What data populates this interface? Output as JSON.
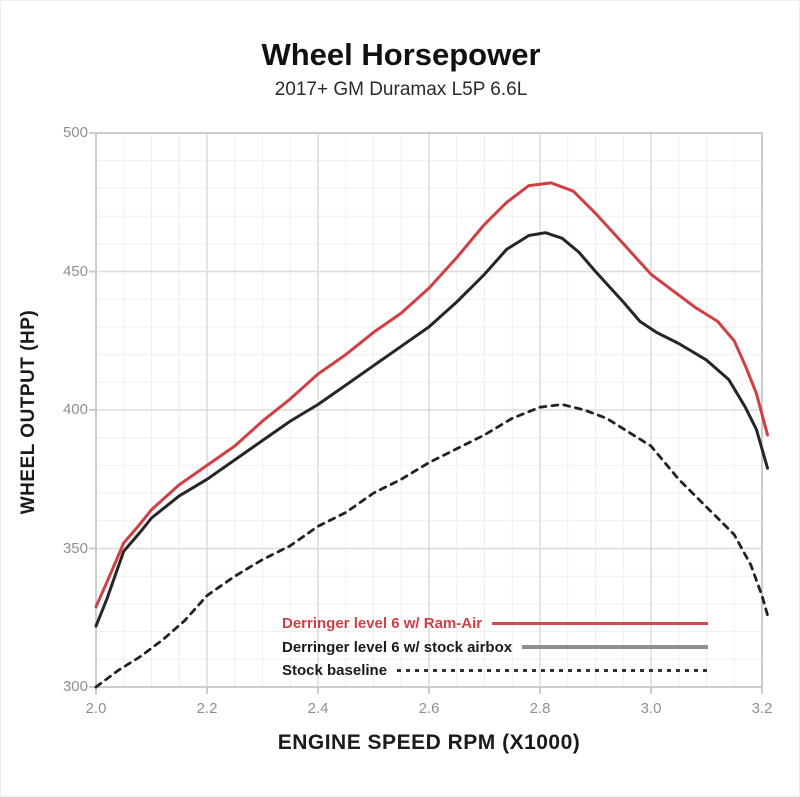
{
  "chart_data": {
    "type": "line",
    "title": "Wheel Horsepower",
    "subtitle": "2017+ GM Duramax L5P 6.6L",
    "xlabel": "ENGINE SPEED RPM (X1000)",
    "ylabel": "WHEEL OUTPUT (HP)",
    "xlim": [
      2.0,
      3.2
    ],
    "ylim": [
      300,
      500
    ],
    "x_ticks": [
      "2.0",
      "2.2",
      "2.4",
      "2.6",
      "2.8",
      "3.0",
      "3.2"
    ],
    "y_ticks": [
      "300",
      "350",
      "400",
      "450",
      "500"
    ],
    "x_major_step": 0.2,
    "x_minor_step": 0.05,
    "y_major_step": 50,
    "y_minor_step": 10,
    "grid": true,
    "legend_position": "inside-bottom-right",
    "series": [
      {
        "name": "Derringer level 6 w/ Ram-Air",
        "style": "solid",
        "color": "#cf3f44",
        "points": [
          [
            2.0,
            329
          ],
          [
            2.02,
            338
          ],
          [
            2.05,
            352
          ],
          [
            2.08,
            359
          ],
          [
            2.1,
            364
          ],
          [
            2.15,
            373
          ],
          [
            2.2,
            380
          ],
          [
            2.25,
            387
          ],
          [
            2.3,
            396
          ],
          [
            2.35,
            404
          ],
          [
            2.4,
            413
          ],
          [
            2.45,
            420
          ],
          [
            2.5,
            428
          ],
          [
            2.55,
            435
          ],
          [
            2.6,
            444
          ],
          [
            2.65,
            455
          ],
          [
            2.7,
            467
          ],
          [
            2.74,
            475
          ],
          [
            2.78,
            481
          ],
          [
            2.82,
            482
          ],
          [
            2.86,
            479
          ],
          [
            2.9,
            471
          ],
          [
            2.95,
            460
          ],
          [
            3.0,
            449
          ],
          [
            3.04,
            443
          ],
          [
            3.08,
            437
          ],
          [
            3.12,
            432
          ],
          [
            3.15,
            425
          ],
          [
            3.17,
            416
          ],
          [
            3.19,
            406
          ],
          [
            3.21,
            391
          ]
        ]
      },
      {
        "name": "Derringer level 6 w/ stock airbox",
        "style": "solid",
        "color": "#262626",
        "points": [
          [
            2.0,
            322
          ],
          [
            2.02,
            332
          ],
          [
            2.05,
            349
          ],
          [
            2.08,
            356
          ],
          [
            2.1,
            361
          ],
          [
            2.15,
            369
          ],
          [
            2.2,
            375
          ],
          [
            2.25,
            382
          ],
          [
            2.3,
            389
          ],
          [
            2.35,
            396
          ],
          [
            2.4,
            402
          ],
          [
            2.45,
            409
          ],
          [
            2.5,
            416
          ],
          [
            2.55,
            423
          ],
          [
            2.6,
            430
          ],
          [
            2.65,
            439
          ],
          [
            2.7,
            449
          ],
          [
            2.74,
            458
          ],
          [
            2.78,
            463
          ],
          [
            2.81,
            464
          ],
          [
            2.84,
            462
          ],
          [
            2.87,
            457
          ],
          [
            2.9,
            450
          ],
          [
            2.95,
            439
          ],
          [
            2.98,
            432
          ],
          [
            3.01,
            428
          ],
          [
            3.05,
            424
          ],
          [
            3.1,
            418
          ],
          [
            3.14,
            411
          ],
          [
            3.17,
            401
          ],
          [
            3.19,
            393
          ],
          [
            3.21,
            379
          ]
        ]
      },
      {
        "name": "Stock baseline",
        "style": "dashed",
        "color": "#222222",
        "points": [
          [
            2.0,
            300
          ],
          [
            2.04,
            306
          ],
          [
            2.08,
            311
          ],
          [
            2.12,
            317
          ],
          [
            2.16,
            324
          ],
          [
            2.2,
            333
          ],
          [
            2.25,
            340
          ],
          [
            2.3,
            346
          ],
          [
            2.35,
            351
          ],
          [
            2.4,
            358
          ],
          [
            2.45,
            363
          ],
          [
            2.5,
            370
          ],
          [
            2.55,
            375
          ],
          [
            2.6,
            381
          ],
          [
            2.65,
            386
          ],
          [
            2.7,
            391
          ],
          [
            2.75,
            397
          ],
          [
            2.8,
            401
          ],
          [
            2.84,
            402
          ],
          [
            2.88,
            400
          ],
          [
            2.92,
            397
          ],
          [
            2.96,
            392
          ],
          [
            3.0,
            387
          ],
          [
            3.05,
            375
          ],
          [
            3.1,
            365
          ],
          [
            3.15,
            355
          ],
          [
            3.18,
            344
          ],
          [
            3.2,
            333
          ],
          [
            3.21,
            326
          ]
        ]
      }
    ],
    "colors": {
      "grid_major": "#dcdcdc",
      "grid_minor": "#efefef",
      "plot_border": "#cccccc",
      "tick_label": "#8f8f8f",
      "red_series": "#cf3f44",
      "legend_gray_swatch": "#8f8f8f"
    }
  }
}
